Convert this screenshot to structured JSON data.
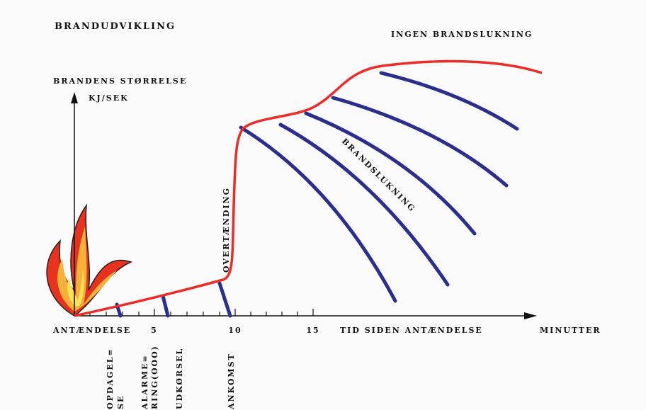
{
  "header": {
    "title": "BRANDUDVIKLING"
  },
  "annotations": {
    "no_extinguishing": "INGEN BRANDSLUKNING",
    "flashover": "OVERTÆNDING",
    "extinguishing": "BRANDSLUKNING"
  },
  "y_axis": {
    "label": "BRANDENS STØRRELSE",
    "unit": "KJ/SEK"
  },
  "x_axis": {
    "origin_label": "ANTÆNDELSE",
    "tick_labels": [
      "5",
      "10",
      "15"
    ],
    "label": "TID SIDEN ANTÆNDELSE",
    "unit": "MINUTTER"
  },
  "events": [
    {
      "lines": [
        "OPDAGEL=",
        "SE"
      ]
    },
    {
      "lines": [
        "ALARME=",
        "RING(OOO)"
      ]
    },
    {
      "lines": [
        "UDKØRSEL"
      ]
    },
    {
      "lines": [
        "ANKOMST"
      ]
    }
  ]
}
